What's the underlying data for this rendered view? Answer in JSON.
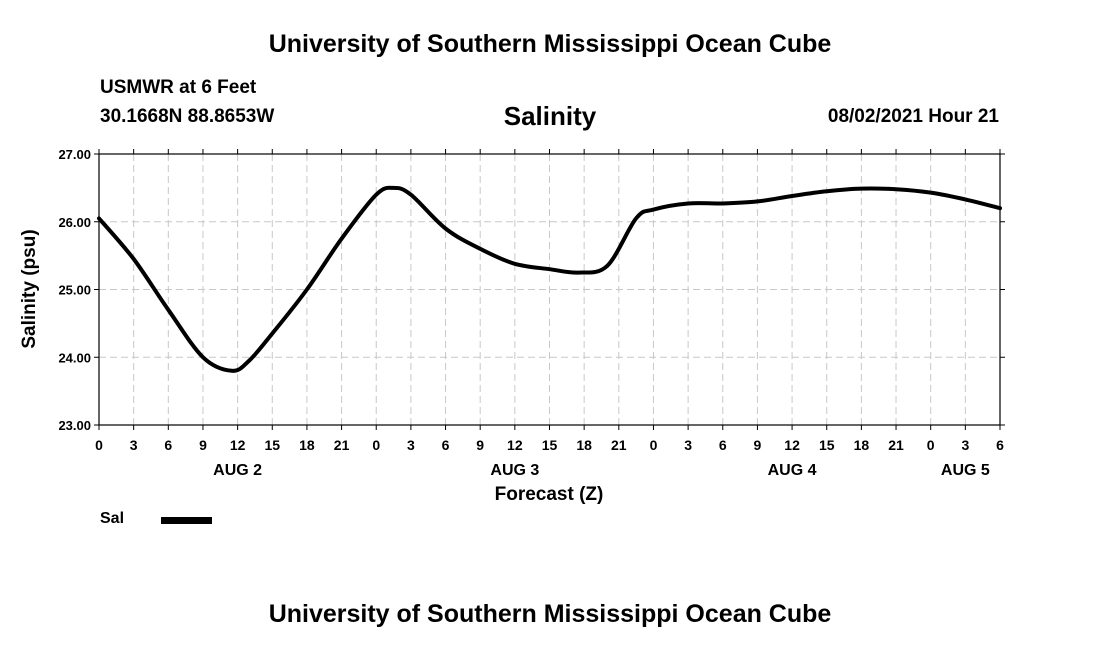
{
  "header": {
    "title": "University of Southern Mississippi Ocean Cube",
    "station": "USMWR at 6 Feet",
    "coordinates": "30.1668N  88.8653W",
    "datetime": "08/02/2021 Hour 21"
  },
  "footer": {
    "title": "University of Southern Mississippi Ocean Cube"
  },
  "legend": {
    "label": "Sal",
    "color": "#000000"
  },
  "chart_data": {
    "type": "line",
    "title": "Salinity",
    "ylabel": "Salinity (psu)",
    "xlabel": "Forecast (Z)",
    "ylim": [
      23.0,
      27.0
    ],
    "yticks": [
      "23.00",
      "24.00",
      "25.00",
      "26.00",
      "27.00"
    ],
    "xlim_hours": [
      0,
      78
    ],
    "xtick_labels": [
      "0",
      "3",
      "6",
      "9",
      "12",
      "15",
      "18",
      "21",
      "0",
      "3",
      "6",
      "9",
      "12",
      "15",
      "18",
      "21",
      "0",
      "3",
      "6",
      "9",
      "12",
      "15",
      "18",
      "21",
      "0",
      "3",
      "6"
    ],
    "day_labels": [
      {
        "label": "AUG 2",
        "hour": 12
      },
      {
        "label": "AUG 3",
        "hour": 36
      },
      {
        "label": "AUG 4",
        "hour": 60
      },
      {
        "label": "AUG 5",
        "hour": 75
      }
    ],
    "grid": true,
    "series": [
      {
        "name": "Sal",
        "color": "#000000",
        "x": [
          0,
          3,
          6,
          9,
          11.5,
          13,
          15,
          18,
          21,
          24,
          25.5,
          27,
          30,
          33,
          36,
          39,
          41.5,
          44,
          46.5,
          48,
          51,
          54,
          57,
          60,
          63,
          66,
          69,
          72,
          75,
          78
        ],
        "y": [
          26.05,
          25.45,
          24.7,
          24.0,
          23.8,
          23.95,
          24.35,
          25.0,
          25.75,
          26.4,
          26.5,
          26.4,
          25.9,
          25.6,
          25.38,
          25.3,
          25.25,
          25.35,
          26.05,
          26.18,
          26.27,
          26.27,
          26.3,
          26.38,
          26.45,
          26.49,
          26.48,
          26.43,
          26.33,
          26.2
        ]
      }
    ]
  }
}
